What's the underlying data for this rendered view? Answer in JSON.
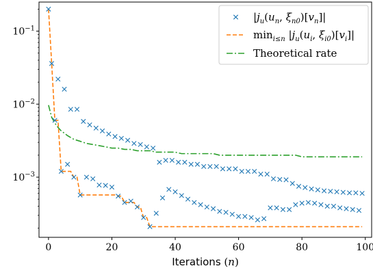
{
  "chart_data": {
    "type": "scatter",
    "xlabel": "Iterations (n)",
    "ylabel": "",
    "title": "",
    "xlim": [
      -3,
      102
    ],
    "ylim": [
      0.00015,
      0.25
    ],
    "yscale": "log",
    "grid": false,
    "legend_position": "top-right",
    "x_ticks": [
      0,
      20,
      40,
      60,
      80,
      100
    ],
    "y_ticks": [
      0.001,
      0.01,
      0.1
    ],
    "y_tick_labels": [
      "10^-3",
      "10^-2",
      "10^-1"
    ],
    "colors": {
      "scatter": "#1f77b4",
      "min": "#ff7f0e",
      "rate": "#2ca02c"
    },
    "series": [
      {
        "name": "|j_u(u_n, ξ_{n0})[v_n]|",
        "style": "x-markers",
        "x": [
          0,
          1,
          2,
          3,
          4,
          5,
          6,
          7,
          8,
          9,
          10,
          11,
          12,
          13,
          14,
          15,
          16,
          17,
          18,
          19,
          20,
          21,
          22,
          23,
          24,
          25,
          26,
          27,
          28,
          29,
          30,
          31,
          32,
          33,
          34,
          35,
          36,
          37,
          38,
          39,
          40,
          41,
          42,
          43,
          44,
          45,
          46,
          47,
          48,
          49,
          50,
          51,
          52,
          53,
          54,
          55,
          56,
          57,
          58,
          59,
          60,
          61,
          62,
          63,
          64,
          65,
          66,
          67,
          68,
          69,
          70,
          71,
          72,
          73,
          74,
          75,
          76,
          77,
          78,
          79,
          80,
          81,
          82,
          83,
          84,
          85,
          86,
          87,
          88,
          89,
          90,
          91,
          92,
          93,
          94,
          95,
          96,
          97,
          98,
          99
        ],
        "values": [
          0.2,
          0.036,
          0.006,
          0.022,
          0.0012,
          0.016,
          0.0015,
          0.0085,
          0.001,
          0.0085,
          0.00057,
          0.0058,
          0.001,
          0.0052,
          0.00095,
          0.0047,
          0.00078,
          0.0043,
          0.00077,
          0.0039,
          0.00073,
          0.0036,
          0.00055,
          0.0034,
          0.00045,
          0.0032,
          0.00047,
          0.0029,
          0.00039,
          0.0028,
          0.00028,
          0.0026,
          0.00021,
          0.0025,
          0.00032,
          0.0016,
          0.00052,
          0.0017,
          0.00068,
          0.0017,
          0.00063,
          0.0016,
          0.00056,
          0.0016,
          0.0005,
          0.0015,
          0.00045,
          0.0015,
          0.00042,
          0.0014,
          0.00039,
          0.0014,
          0.00037,
          0.0014,
          0.00034,
          0.0013,
          0.00033,
          0.0013,
          0.00031,
          0.0013,
          0.00029,
          0.0012,
          0.00029,
          0.0012,
          0.00028,
          0.0012,
          0.00026,
          0.0011,
          0.00027,
          0.0011,
          0.00038,
          0.00095,
          0.00038,
          0.00093,
          0.00036,
          0.00092,
          0.00036,
          0.00082,
          0.00042,
          0.00075,
          0.00044,
          0.00072,
          0.00045,
          0.00069,
          0.00044,
          0.00067,
          0.00042,
          0.00065,
          0.0004,
          0.00064,
          0.0004,
          0.00063,
          0.00038,
          0.00062,
          0.00037,
          0.00061,
          0.00036,
          0.00061,
          0.00035,
          0.0006
        ]
      },
      {
        "name": "min_{i≤n} |j_u(u_i, ξ_{i0})[v_i]|",
        "style": "dashed",
        "x": [
          0,
          1,
          2,
          3,
          4,
          5,
          6,
          7,
          8,
          9,
          10,
          11,
          12,
          13,
          14,
          15,
          16,
          17,
          18,
          19,
          20,
          21,
          22,
          23,
          24,
          25,
          26,
          27,
          28,
          29,
          30,
          31,
          32,
          33,
          34,
          35,
          36,
          37,
          38,
          39,
          40,
          41,
          42,
          43,
          44,
          45,
          46,
          47,
          48,
          49,
          50,
          51,
          52,
          53,
          54,
          55,
          56,
          57,
          58,
          59,
          60,
          61,
          62,
          63,
          64,
          65,
          66,
          67,
          68,
          69,
          70,
          71,
          72,
          73,
          74,
          75,
          76,
          77,
          78,
          79,
          80,
          81,
          82,
          83,
          84,
          85,
          86,
          87,
          88,
          89,
          90,
          91,
          92,
          93,
          94,
          95,
          96,
          97,
          98,
          99
        ],
        "values": [
          0.2,
          0.036,
          0.006,
          0.006,
          0.0012,
          0.0012,
          0.0012,
          0.0012,
          0.001,
          0.001,
          0.00057,
          0.00057,
          0.00057,
          0.00057,
          0.00057,
          0.00057,
          0.00057,
          0.00057,
          0.00057,
          0.00057,
          0.00057,
          0.00057,
          0.00055,
          0.00055,
          0.00045,
          0.00045,
          0.00045,
          0.00045,
          0.00039,
          0.00039,
          0.00028,
          0.00028,
          0.00021,
          0.00021,
          0.00021,
          0.00021,
          0.00021,
          0.00021,
          0.00021,
          0.00021,
          0.00021,
          0.00021,
          0.00021,
          0.00021,
          0.00021,
          0.00021,
          0.00021,
          0.00021,
          0.00021,
          0.00021,
          0.00021,
          0.00021,
          0.00021,
          0.00021,
          0.00021,
          0.00021,
          0.00021,
          0.00021,
          0.00021,
          0.00021,
          0.00021,
          0.00021,
          0.00021,
          0.00021,
          0.00021,
          0.00021,
          0.00021,
          0.00021,
          0.00021,
          0.00021,
          0.00021,
          0.00021,
          0.00021,
          0.00021,
          0.00021,
          0.00021,
          0.00021,
          0.00021,
          0.00021,
          0.00021,
          0.00021,
          0.00021,
          0.00021,
          0.00021,
          0.00021,
          0.00021,
          0.00021,
          0.00021,
          0.00021,
          0.00021,
          0.00021,
          0.00021,
          0.00021,
          0.00021,
          0.00021,
          0.00021,
          0.00021,
          0.00021,
          0.00021,
          0.00021
        ]
      },
      {
        "name": "Theoretical rate",
        "style": "dashdot",
        "x": [
          0,
          1,
          2,
          3,
          4,
          5,
          6,
          8,
          10,
          12,
          14,
          16,
          18,
          20,
          22,
          24,
          26,
          28,
          30,
          32,
          34,
          36,
          38,
          40,
          42,
          44,
          46,
          48,
          50,
          52,
          54,
          56,
          58,
          60,
          62,
          64,
          66,
          68,
          70,
          72,
          74,
          76,
          78,
          80,
          82,
          84,
          86,
          88,
          90,
          92,
          94,
          96,
          98,
          99
        ],
        "values": [
          0.0097,
          0.0066,
          0.0055,
          0.0048,
          0.0043,
          0.004,
          0.0037,
          0.0033,
          0.0031,
          0.0029,
          0.0028,
          0.0027,
          0.0026,
          0.0025,
          0.0025,
          0.0024,
          0.0024,
          0.0023,
          0.0023,
          0.0023,
          0.0022,
          0.0022,
          0.0022,
          0.0022,
          0.0021,
          0.0021,
          0.0021,
          0.0021,
          0.0021,
          0.0021,
          0.002,
          0.002,
          0.002,
          0.002,
          0.002,
          0.002,
          0.002,
          0.002,
          0.002,
          0.002,
          0.002,
          0.002,
          0.002,
          0.0019,
          0.0019,
          0.0019,
          0.0019,
          0.0019,
          0.0019,
          0.0019,
          0.0019,
          0.0019,
          0.0019,
          0.0019
        ]
      }
    ]
  }
}
